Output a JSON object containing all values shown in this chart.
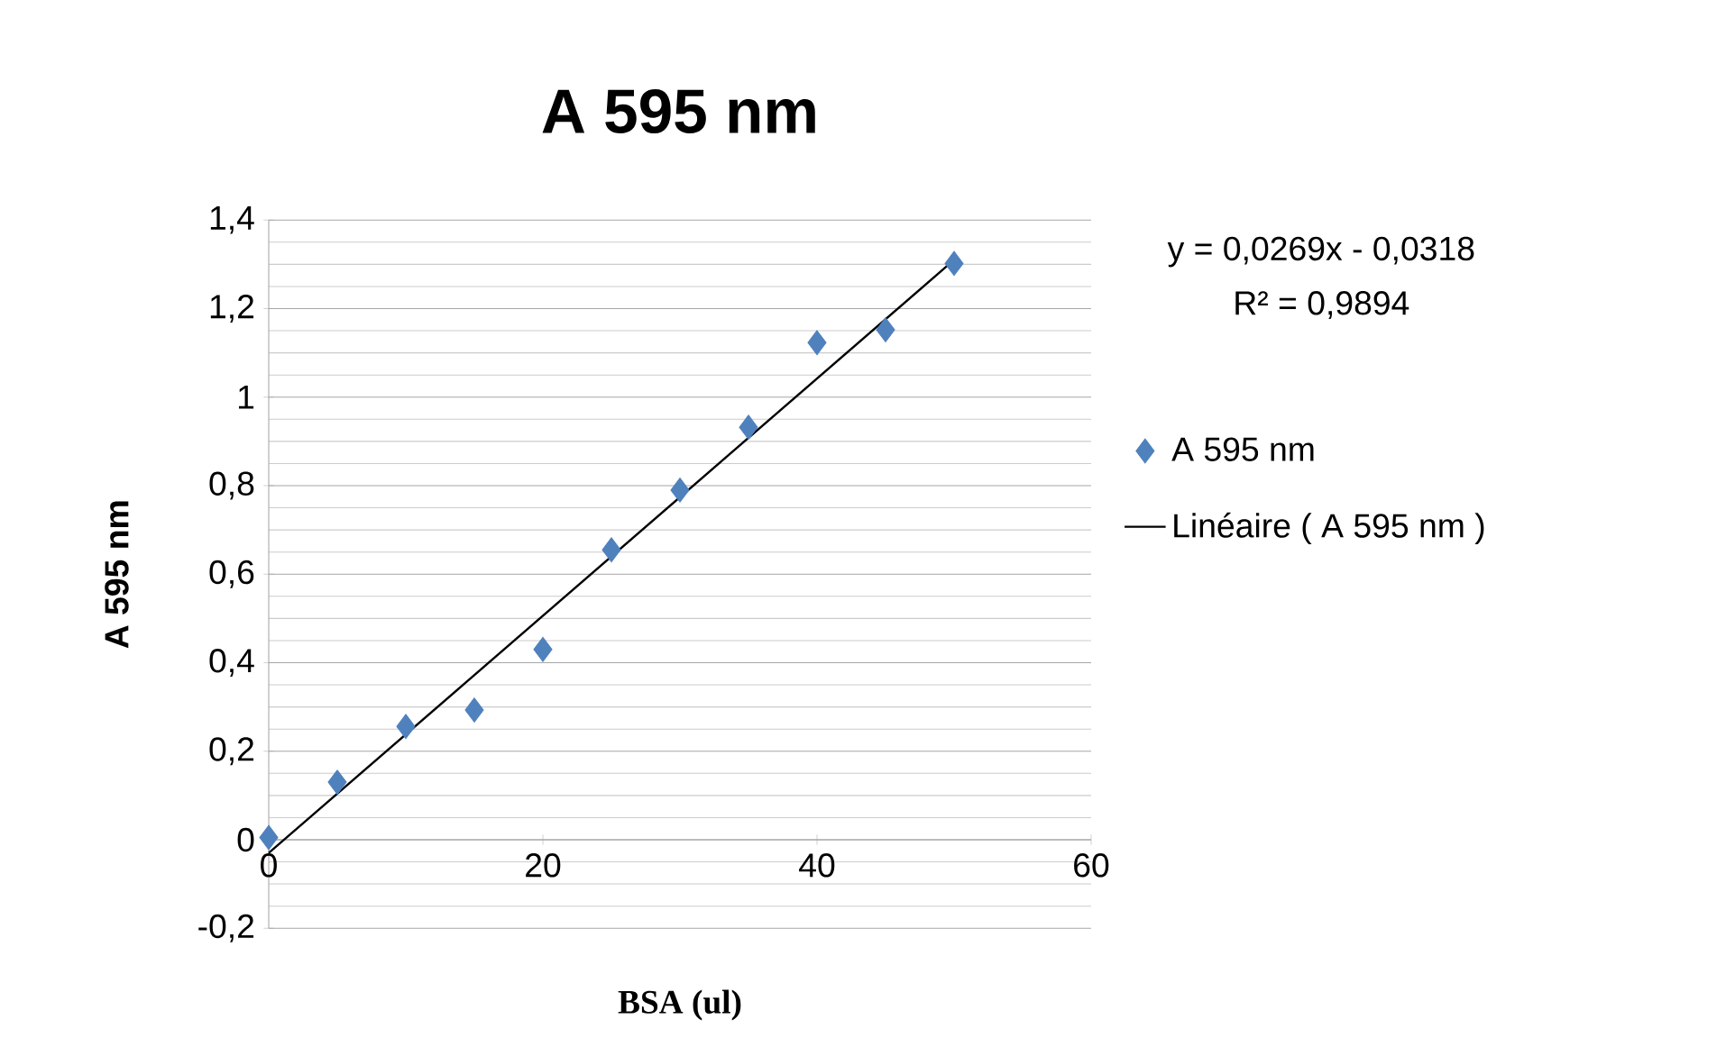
{
  "chart_data": {
    "type": "scatter",
    "title": "A 595 nm",
    "xlabel": "BSA (ul)",
    "ylabel": "A 595 nm",
    "xlim": [
      0,
      60
    ],
    "ylim": [
      -0.2,
      1.4
    ],
    "xticks": [
      0,
      20,
      40,
      60
    ],
    "yticks": [
      {
        "value": -0.2,
        "label": "-0,2"
      },
      {
        "value": 0,
        "label": "0"
      },
      {
        "value": 0.2,
        "label": "0,2"
      },
      {
        "value": 0.4,
        "label": "0,4"
      },
      {
        "value": 0.6,
        "label": "0,6"
      },
      {
        "value": 0.8,
        "label": "0,8"
      },
      {
        "value": 1,
        "label": "1"
      },
      {
        "value": 1.2,
        "label": "1,2"
      },
      {
        "value": 1.4,
        "label": "1,4"
      }
    ],
    "grid": "y",
    "legend": "right",
    "series": [
      {
        "name": "A 595 nm",
        "marker": "diamond",
        "color": "#4f81bd",
        "x": [
          0,
          5,
          10,
          15,
          20,
          25,
          30,
          35,
          40,
          45,
          50
        ],
        "values": [
          0.005,
          0.13,
          0.256,
          0.293,
          0.43,
          0.655,
          0.79,
          0.932,
          1.123,
          1.152,
          1.302
        ]
      },
      {
        "name": "Linéaire ( A 595 nm )",
        "type": "line",
        "marker": "none",
        "color": "#000000",
        "x": [
          0,
          50
        ],
        "values": [
          -0.03,
          1.31
        ]
      }
    ],
    "annotations": [
      "y = 0,0269x - 0,0318",
      "R² = 0,9894"
    ]
  }
}
